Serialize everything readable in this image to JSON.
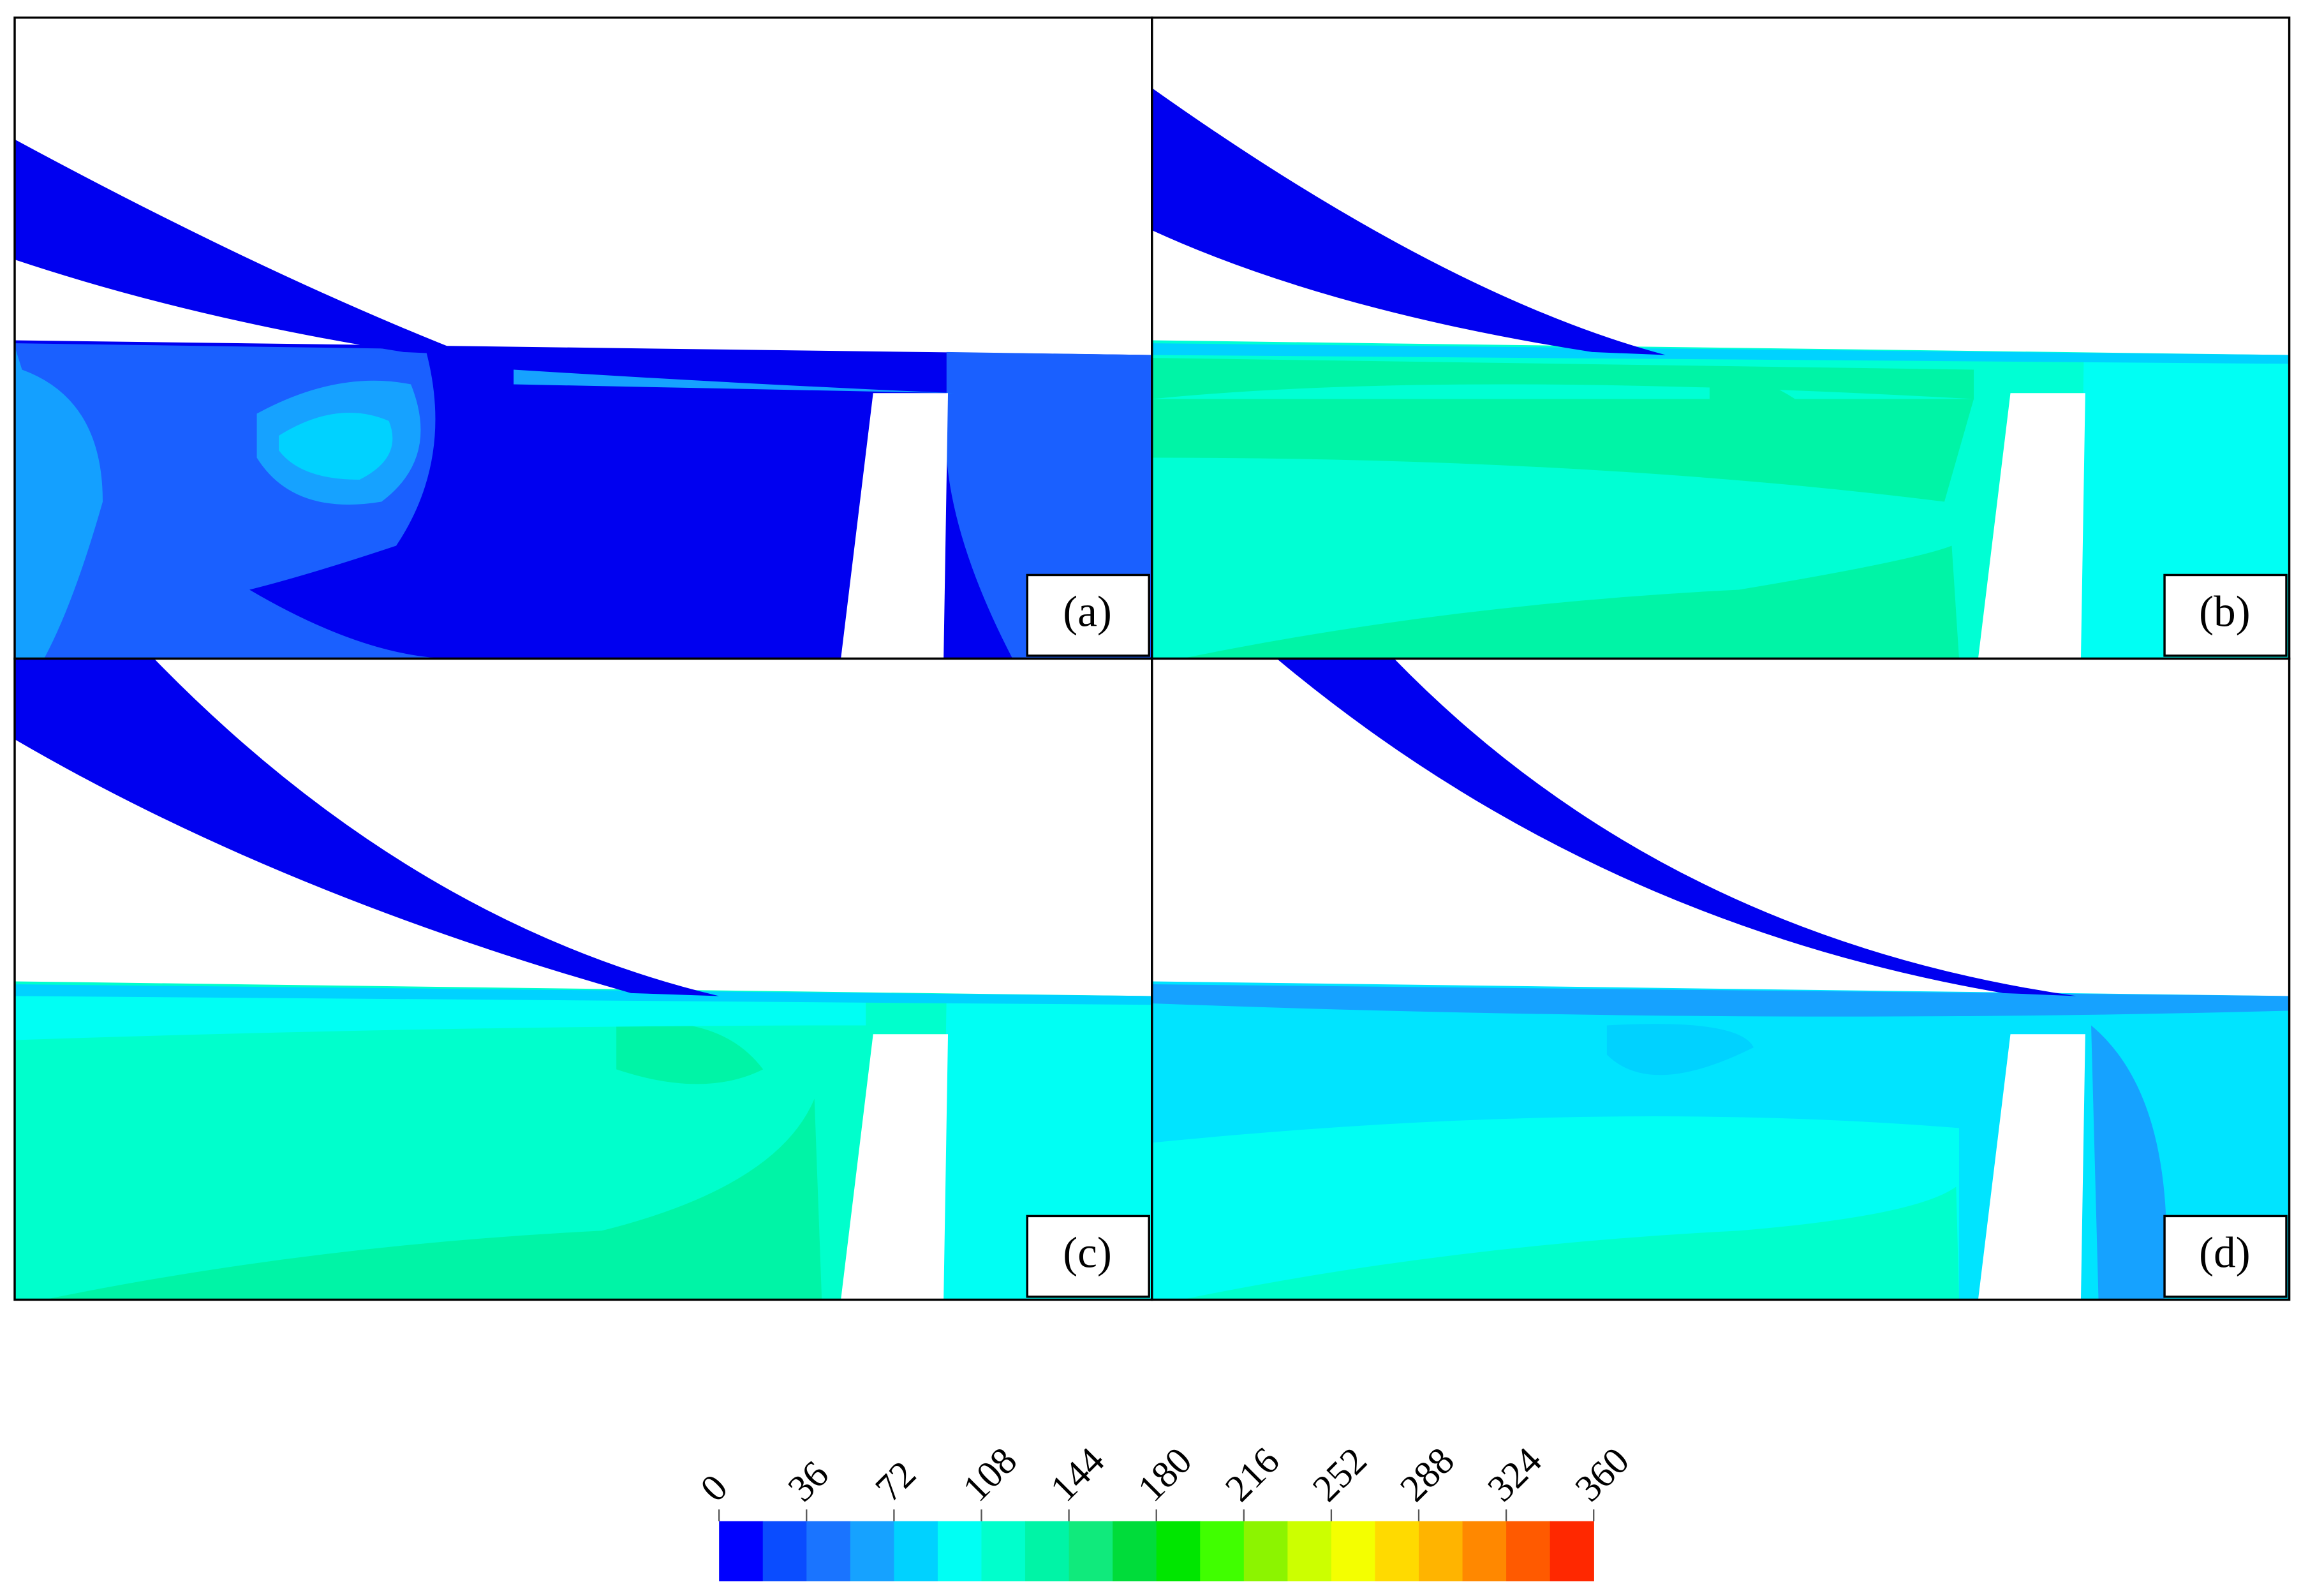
{
  "panels": [
    {
      "label": "(a)"
    },
    {
      "label": "(b)"
    },
    {
      "label": "(c)"
    },
    {
      "label": "(d)"
    }
  ],
  "colorbar": {
    "min": 0,
    "max": 360,
    "ticks": [
      0,
      36,
      72,
      108,
      144,
      180,
      216,
      252,
      288,
      324,
      360
    ],
    "colors": [
      "#0000ff",
      "#0a4cff",
      "#1a74ff",
      "#16a2ff",
      "#00d2ff",
      "#00fff4",
      "#00ffcc",
      "#00f4a6",
      "#10ea7c",
      "#00dc3a",
      "#00e600",
      "#40ff00",
      "#8cf400",
      "#ccff00",
      "#f4ff00",
      "#ffda00",
      "#ffb400",
      "#ff8800",
      "#ff5a00",
      "#ff2800"
    ]
  }
}
